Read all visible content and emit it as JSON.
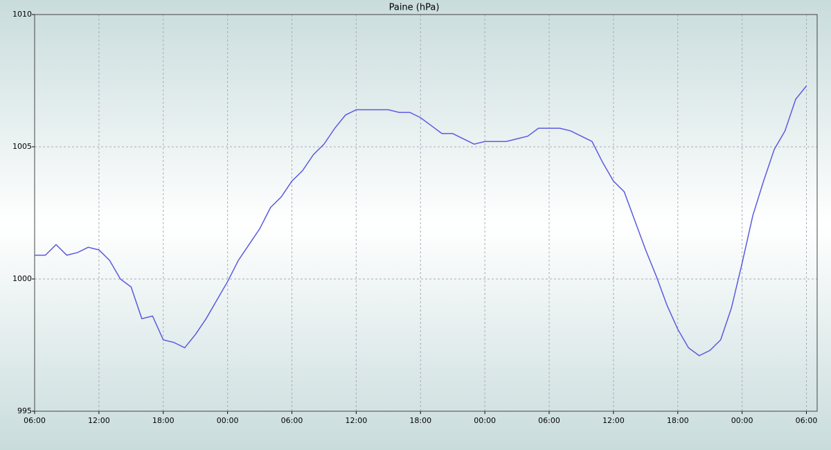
{
  "chart_data": {
    "type": "line",
    "title": "Paine (hPa)",
    "x": [
      0,
      1,
      2,
      3,
      4,
      5,
      6,
      7,
      8,
      9,
      10,
      11,
      12,
      13,
      14,
      15,
      16,
      17,
      18,
      19,
      20,
      21,
      22,
      23,
      24,
      25,
      26,
      27,
      28,
      29,
      30,
      31,
      32,
      33,
      34,
      35,
      36,
      37,
      38,
      39,
      40,
      41,
      42,
      43,
      44,
      45,
      46,
      47,
      48,
      49,
      50,
      51,
      52,
      53,
      54,
      55,
      56,
      57,
      58,
      59,
      60,
      61,
      62,
      63,
      64,
      65,
      66,
      67,
      68,
      69,
      70,
      71,
      72
    ],
    "series": [
      {
        "name": "Paine",
        "color": "#5a5ae0",
        "values": [
          1000.9,
          1000.9,
          1001.3,
          1000.9,
          1001.0,
          1001.2,
          1001.1,
          1000.7,
          1000.0,
          999.7,
          998.5,
          998.6,
          997.7,
          997.6,
          997.4,
          997.9,
          998.5,
          999.2,
          999.9,
          1000.7,
          1001.3,
          1001.9,
          1002.7,
          1003.1,
          1003.7,
          1004.1,
          1004.7,
          1005.1,
          1005.7,
          1006.2,
          1006.4,
          1006.4,
          1006.4,
          1006.4,
          1006.3,
          1006.3,
          1006.1,
          1005.8,
          1005.5,
          1005.5,
          1005.3,
          1005.1,
          1005.2,
          1005.2,
          1005.2,
          1005.3,
          1005.4,
          1005.7,
          1005.7,
          1005.7,
          1005.6,
          1005.4,
          1005.2,
          1004.4,
          1003.7,
          1003.3,
          1002.2,
          1001.1,
          1000.1,
          999.0,
          998.1,
          997.4,
          997.1,
          997.3,
          997.7,
          998.9,
          1000.6,
          1002.4,
          1003.7,
          1004.9,
          1005.6,
          1006.8,
          1007.3
        ]
      }
    ],
    "xlim": [
      0,
      73
    ],
    "xticks": [
      {
        "value": 0,
        "label": "06:00"
      },
      {
        "value": 6,
        "label": "12:00"
      },
      {
        "value": 12,
        "label": "18:00"
      },
      {
        "value": 18,
        "label": "00:00"
      },
      {
        "value": 24,
        "label": "06:00"
      },
      {
        "value": 30,
        "label": "12:00"
      },
      {
        "value": 36,
        "label": "18:00"
      },
      {
        "value": 42,
        "label": "00:00"
      },
      {
        "value": 48,
        "label": "06:00"
      },
      {
        "value": 54,
        "label": "12:00"
      },
      {
        "value": 60,
        "label": "18:00"
      },
      {
        "value": 66,
        "label": "00:00"
      },
      {
        "value": 72,
        "label": "06:00"
      }
    ],
    "ylim": [
      995,
      1010
    ],
    "yticks": [
      995,
      1000,
      1005,
      1010
    ],
    "grid": true
  }
}
